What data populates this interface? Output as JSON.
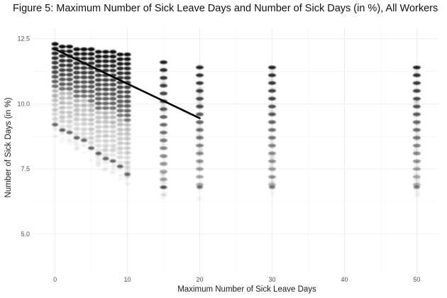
{
  "chart_data": {
    "type": "scatter",
    "title": "Figure 5: Maximum Number of Sick Leave Days and Number of Sick Days (in %), All Workers",
    "xlabel": "Maximum Number of Sick Leave Days",
    "ylabel": "Number of Sick Days (in %)",
    "xlim": [
      -3,
      53
    ],
    "ylim": [
      3.5,
      12.9
    ],
    "x_ticks": [
      0,
      10,
      20,
      30,
      40,
      50
    ],
    "y_ticks": [
      5.0,
      7.5,
      10.0,
      12.5
    ],
    "x_tick_labels": [
      "0",
      "10",
      "20",
      "30",
      "40",
      "50"
    ],
    "y_tick_labels": [
      "5.0",
      "7.5",
      "10.0",
      "12.5"
    ],
    "grid": true,
    "legend": "none",
    "point_color": "#000000",
    "point_note": "semi-transparent points; darker where many observations overlap",
    "columns": [
      {
        "x": 0,
        "y_range": [
          9.2,
          12.3
        ]
      },
      {
        "x": 1,
        "y_range": [
          9.0,
          12.2
        ]
      },
      {
        "x": 2,
        "y_range": [
          8.9,
          12.2
        ]
      },
      {
        "x": 3,
        "y_range": [
          8.7,
          12.1
        ]
      },
      {
        "x": 4,
        "y_range": [
          8.6,
          12.1
        ]
      },
      {
        "x": 5,
        "y_range": [
          8.3,
          12.1
        ]
      },
      {
        "x": 6,
        "y_range": [
          8.1,
          12.0
        ]
      },
      {
        "x": 7,
        "y_range": [
          7.9,
          12.0
        ]
      },
      {
        "x": 8,
        "y_range": [
          7.8,
          12.0
        ]
      },
      {
        "x": 9,
        "y_range": [
          7.6,
          11.9
        ]
      },
      {
        "x": 10,
        "y_range": [
          7.3,
          11.9
        ]
      },
      {
        "x": 15,
        "y_range": [
          6.8,
          11.6
        ]
      },
      {
        "x": 20,
        "y_range": [
          6.8,
          11.4
        ]
      },
      {
        "x": 30,
        "y_range": [
          6.8,
          11.4
        ]
      },
      {
        "x": 50,
        "y_range": [
          6.8,
          11.4
        ]
      }
    ],
    "trend_line": {
      "x": [
        0,
        20
      ],
      "y": [
        12.1,
        9.45
      ],
      "color": "#000000"
    }
  }
}
